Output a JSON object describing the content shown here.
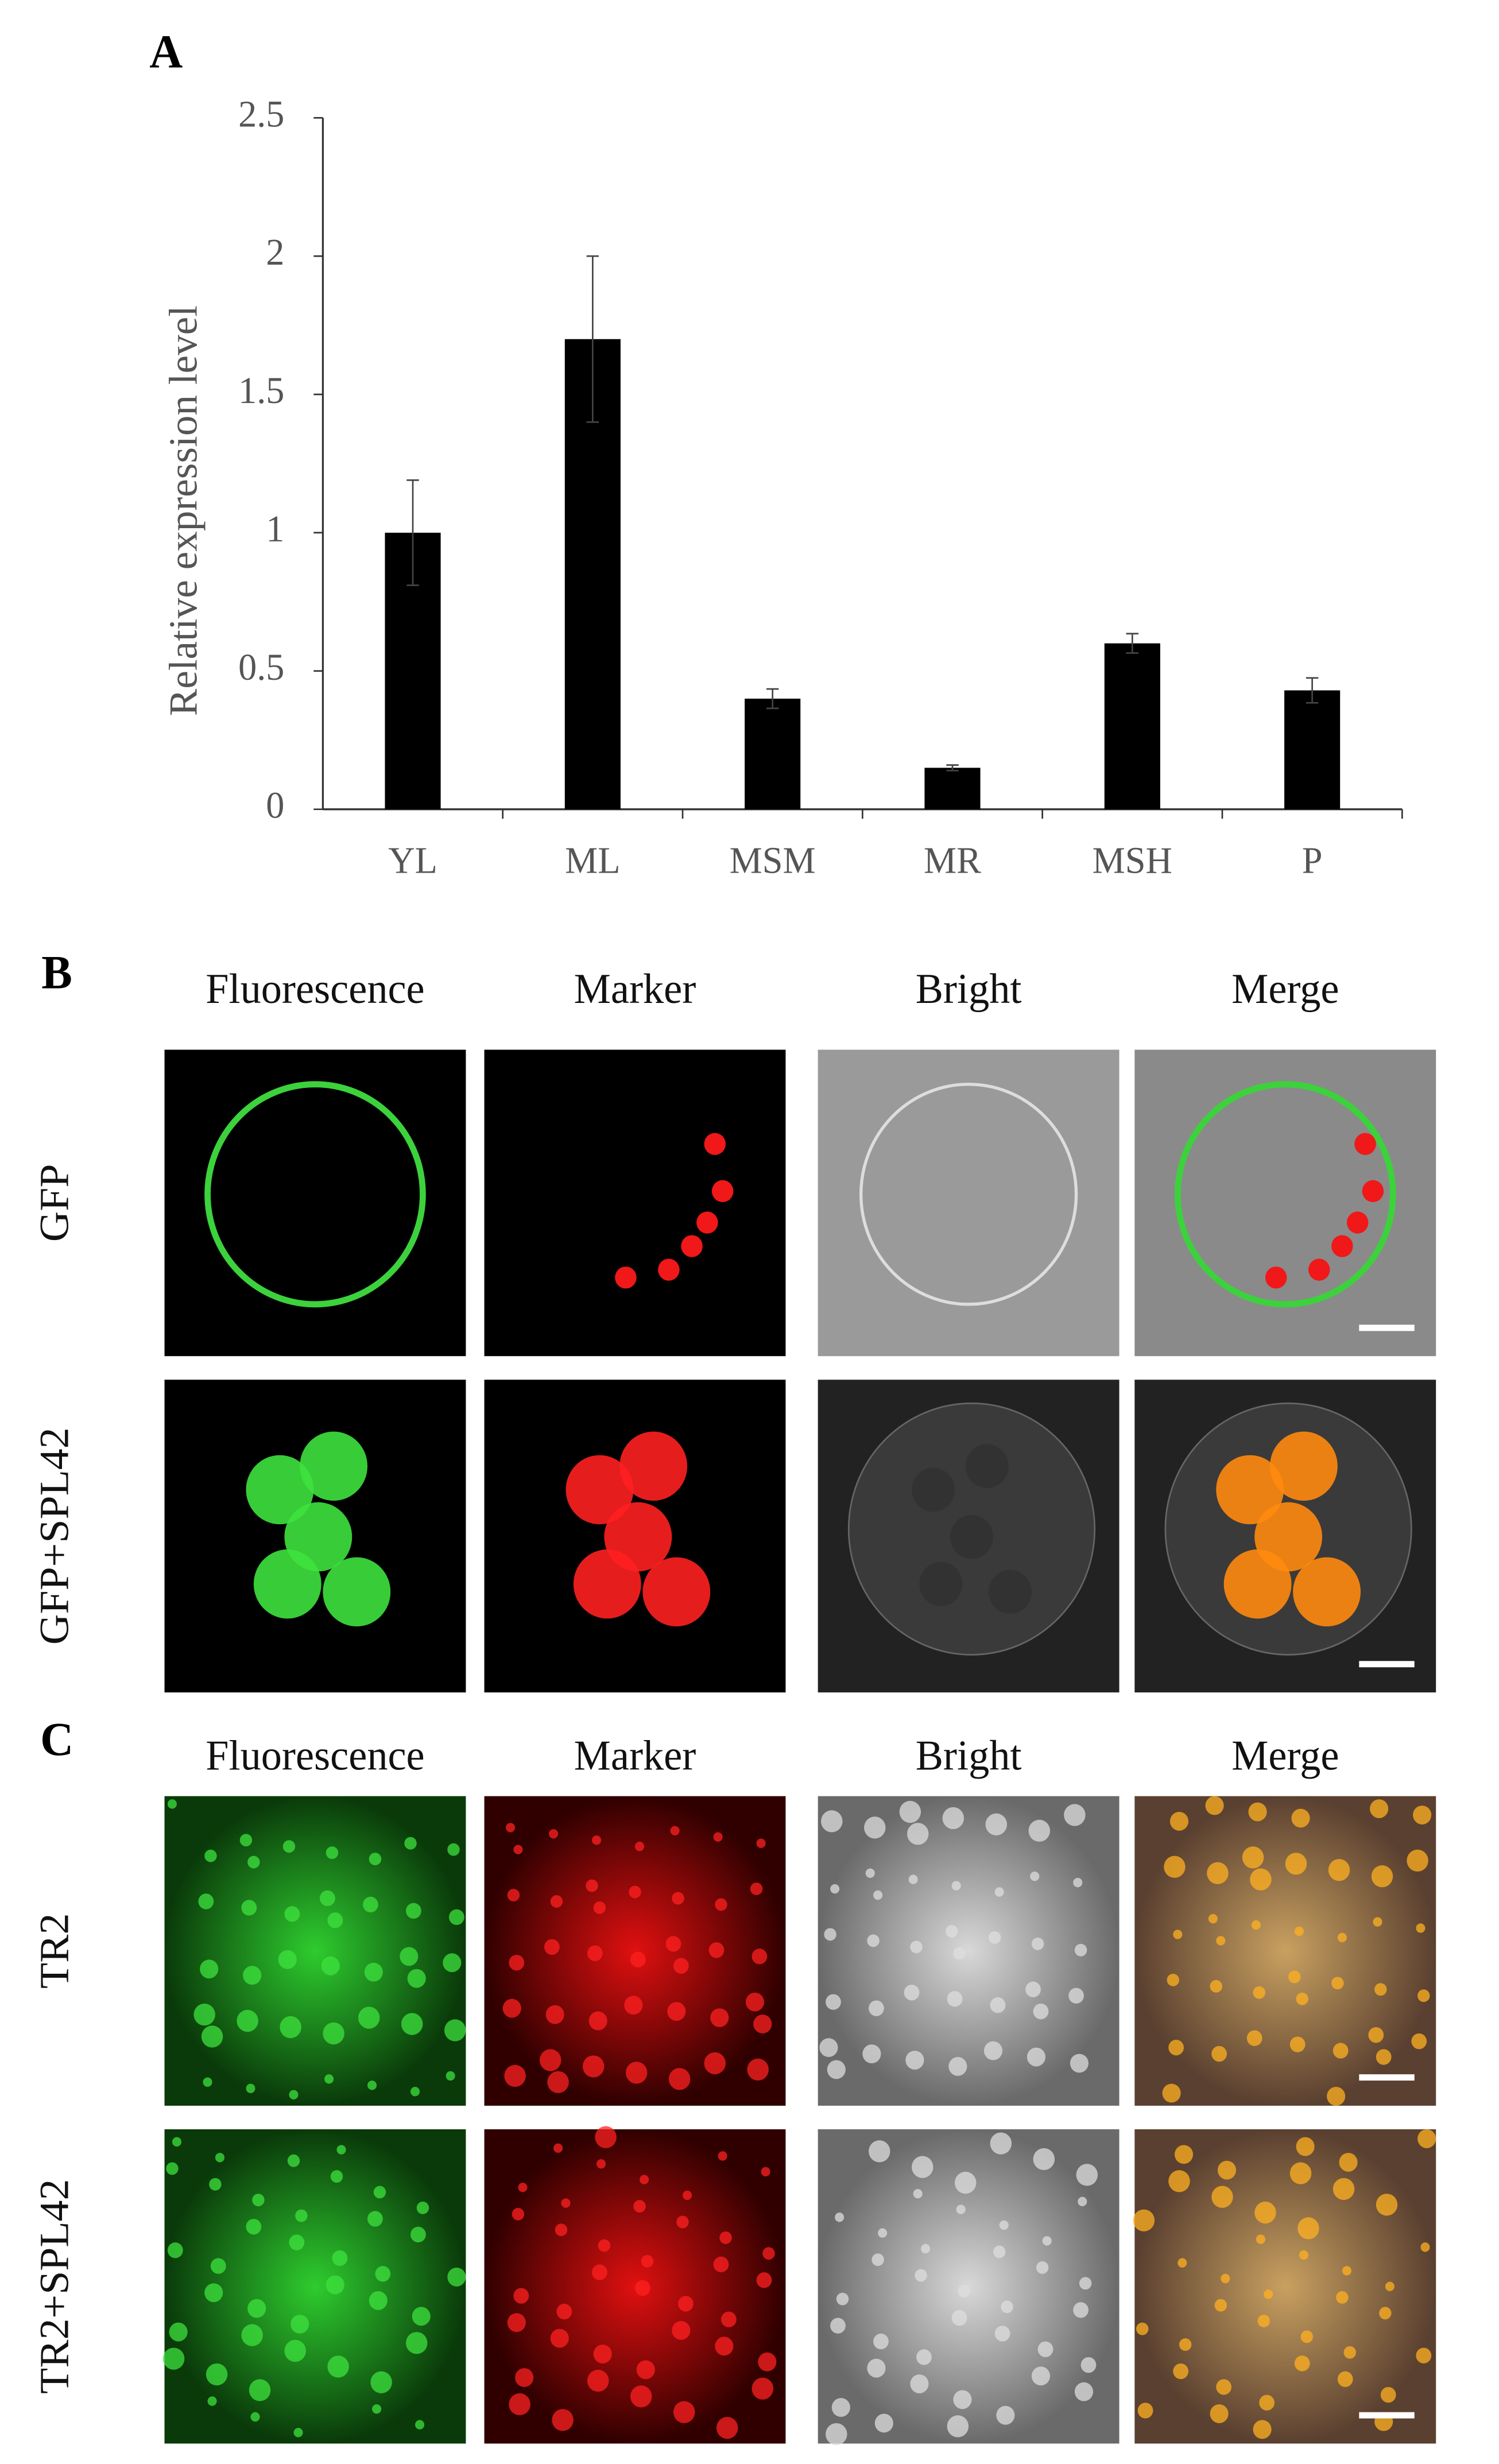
{
  "chart_data": {
    "type": "bar",
    "panel_label": "A",
    "y_label": "Relative expression level",
    "categories": [
      "YL",
      "ML",
      "MSM",
      "MR",
      "MSH",
      "P"
    ],
    "values": [
      1.0,
      1.7,
      0.4,
      0.15,
      0.6,
      0.43
    ],
    "errors": [
      0.19,
      0.3,
      0.035,
      0.01,
      0.035,
      0.045
    ],
    "color": "#000000",
    "ylim": [
      0,
      2.5
    ],
    "yticks": [
      0,
      0.5,
      1,
      1.5,
      2,
      2.5
    ],
    "grid": false
  },
  "panel_b": {
    "label": "B",
    "columns": [
      "Fluorescence",
      "Marker",
      "Bright",
      "Merge"
    ],
    "rows": [
      "GFP",
      "GFP+SPL42"
    ]
  },
  "panel_c": {
    "label": "C",
    "columns": [
      "Fluorescence",
      "Marker",
      "Bright",
      "Merge"
    ],
    "rows": [
      "TR2",
      "TR2+SPL42"
    ]
  }
}
